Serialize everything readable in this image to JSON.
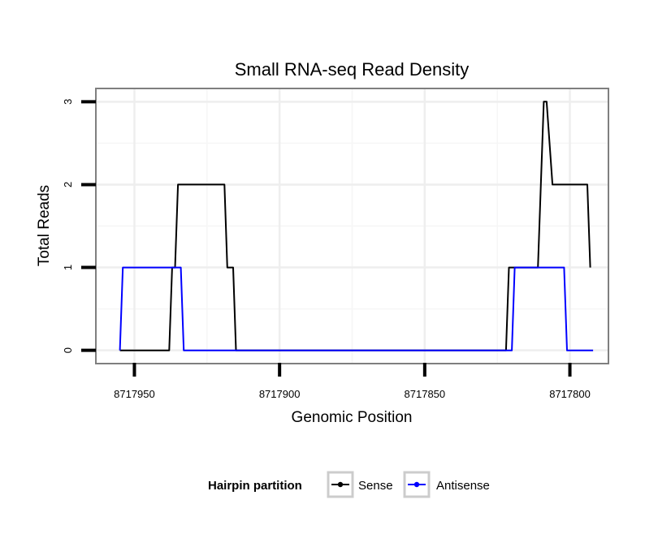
{
  "chart_data": {
    "type": "line",
    "title": "Small RNA-seq Read Density",
    "xlabel": "Genomic Position",
    "ylabel": "Total Reads",
    "x_reversed": true,
    "xlim": [
      8717963,
      8717787
    ],
    "ylim": [
      -0.15,
      3.15
    ],
    "xticks": [
      8717950,
      8717900,
      8717850,
      8717800
    ],
    "xtick_labels": [
      "8717950",
      "8717900",
      "8717850",
      "8717800"
    ],
    "yticks": [
      0,
      1,
      2,
      3
    ],
    "ytick_labels": [
      "0",
      "1",
      "2",
      "3"
    ],
    "grid": true,
    "legend": {
      "title": "Hairpin partition",
      "position": "bottom",
      "entries": [
        {
          "name": "Sense",
          "color": "#000000"
        },
        {
          "name": "Antisense",
          "color": "#0000ff"
        }
      ]
    },
    "series": [
      {
        "name": "Sense",
        "color": "#000000",
        "x": [
          8717955,
          8717940,
          8717938,
          8717937,
          8717936,
          8717935,
          8717919,
          8717918,
          8717916,
          8717915,
          8717822,
          8717821,
          8717811,
          8717809,
          8717808,
          8717806,
          8717805,
          8717794,
          8717793
        ],
        "y": [
          0,
          0,
          0,
          1,
          1,
          2,
          2,
          1,
          1,
          0,
          0,
          1,
          1,
          3,
          3,
          2,
          2,
          2,
          1
        ]
      },
      {
        "name": "Antisense",
        "color": "#0000ff",
        "x": [
          8717955,
          8717954,
          8717934,
          8717933,
          8717820,
          8717819,
          8717802,
          8717801,
          8717792
        ],
        "y": [
          0,
          1,
          1,
          0,
          0,
          1,
          1,
          0,
          0
        ]
      }
    ]
  }
}
